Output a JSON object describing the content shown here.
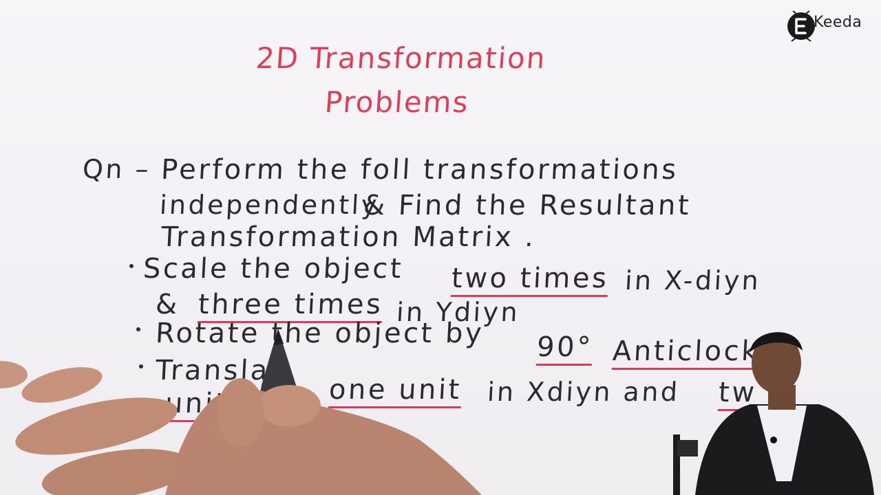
{
  "header": {
    "title_line1": "2D Transformation",
    "title_line2": "Problems"
  },
  "logo": {
    "text": "Keeda"
  },
  "question": {
    "marker": "Qn –",
    "line1": "Perform the foll transformations",
    "line2_a": "independently",
    "line2_b": "& Find the Resultant",
    "line3": "Transformation Matrix ."
  },
  "bullets": {
    "b1_a": "Scale the object",
    "b1_u1": "two times",
    "b1_b": "in X-diyn",
    "b1_c": "&",
    "b1_u2": "three times",
    "b1_d": "in Ydiyn",
    "b2_a": "Rotate the object by",
    "b2_u1": "90°",
    "b2_u2": "Anticlockw",
    "b3_a": "Transla",
    "b3_u1": "one unit",
    "b3_b": "in Xdiyn and",
    "b3_u2": "tw",
    "b3_u3": "unit"
  },
  "colors": {
    "title_ink": "#d9405a",
    "body_ink": "#2b2b2f",
    "underline": "#d93a55",
    "paper": "#f5f3f6"
  }
}
